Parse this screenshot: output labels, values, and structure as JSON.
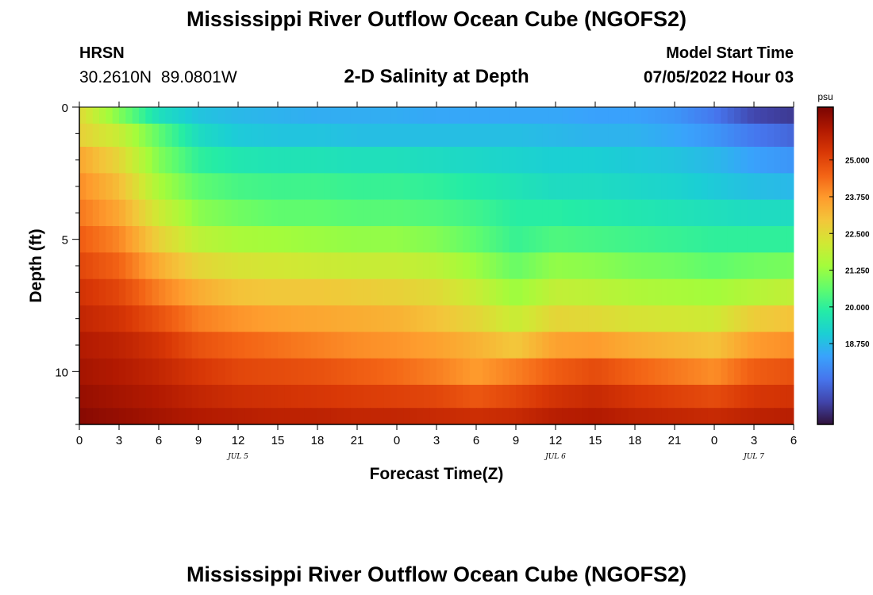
{
  "header": {
    "title": "Mississippi River Outflow Ocean Cube (NGOFS2)",
    "station": "HRSN",
    "coords": "30.2610N  89.0801W",
    "subtitle": "2-D Salinity at Depth",
    "model_label": "Model Start Time",
    "model_time": "07/05/2022 Hour 03"
  },
  "footer": {
    "title": "Mississippi River Outflow Ocean Cube (NGOFS2)"
  },
  "chart_data": {
    "type": "heatmap",
    "title": "2-D Salinity at Depth",
    "xlabel": "Forecast Time(Z)",
    "ylabel": "Depth (ft)",
    "x_ticks": [
      "0",
      "3",
      "6",
      "9",
      "12",
      "15",
      "18",
      "21",
      "0",
      "3",
      "6",
      "9",
      "12",
      "15",
      "18",
      "21",
      "0",
      "3",
      "6"
    ],
    "x_dates": [
      {
        "label": "JUL 5",
        "hour": 12
      },
      {
        "label": "JUL 6",
        "hour": 36
      },
      {
        "label": "JUL 7",
        "hour": 51
      }
    ],
    "xlim": [
      0,
      54
    ],
    "y_ticks": [
      0,
      5,
      10
    ],
    "ylim": [
      0,
      12
    ],
    "layer_depths": [
      0.25,
      1.0,
      2.0,
      3.0,
      4.0,
      5.0,
      6.0,
      7.0,
      8.0,
      9.0,
      10.0,
      11.0,
      11.75
    ],
    "hours": [
      0,
      3,
      6,
      9,
      12,
      15,
      18,
      21,
      24,
      27,
      30,
      33,
      36,
      39,
      42,
      45,
      48,
      51,
      54
    ],
    "salinity": [
      [
        22.5,
        21.0,
        19.5,
        18.9,
        18.7,
        18.6,
        18.5,
        18.5,
        18.5,
        18.4,
        18.4,
        18.4,
        18.4,
        18.3,
        18.3,
        18.1,
        17.6,
        16.8,
        16.6
      ],
      [
        22.7,
        22.0,
        20.6,
        19.4,
        19.0,
        18.9,
        18.9,
        18.8,
        18.8,
        18.8,
        18.8,
        18.8,
        18.7,
        18.6,
        18.6,
        18.4,
        18.1,
        17.6,
        17.3
      ],
      [
        23.5,
        22.6,
        21.0,
        20.0,
        19.7,
        19.6,
        19.6,
        19.5,
        19.5,
        19.4,
        19.3,
        19.2,
        19.1,
        19.1,
        19.0,
        18.9,
        18.7,
        18.3,
        18.1
      ],
      [
        23.9,
        23.1,
        21.5,
        20.6,
        20.3,
        20.2,
        20.2,
        20.1,
        20.1,
        20.0,
        19.8,
        19.6,
        19.4,
        19.4,
        19.3,
        19.2,
        19.0,
        18.8,
        18.7
      ],
      [
        24.2,
        23.5,
        22.1,
        21.1,
        20.8,
        20.6,
        20.6,
        20.5,
        20.5,
        20.4,
        20.2,
        19.9,
        19.9,
        19.8,
        19.7,
        19.6,
        19.5,
        19.4,
        19.4
      ],
      [
        24.6,
        24.0,
        22.7,
        21.8,
        21.5,
        21.4,
        21.3,
        21.2,
        21.2,
        21.0,
        20.6,
        20.1,
        20.4,
        20.3,
        20.2,
        20.1,
        20.0,
        20.0,
        20.0
      ],
      [
        25.0,
        24.5,
        23.4,
        22.6,
        22.3,
        22.2,
        22.1,
        22.0,
        22.0,
        21.8,
        21.3,
        20.7,
        21.2,
        21.1,
        20.9,
        20.8,
        20.6,
        20.8,
        20.9
      ],
      [
        25.4,
        25.0,
        24.1,
        23.4,
        23.0,
        22.9,
        22.9,
        22.8,
        22.7,
        22.5,
        22.0,
        21.3,
        21.9,
        21.8,
        21.6,
        21.5,
        21.4,
        21.7,
        21.9
      ],
      [
        25.7,
        25.4,
        24.8,
        24.1,
        23.8,
        23.6,
        23.5,
        23.4,
        23.3,
        23.0,
        22.6,
        22.0,
        22.6,
        22.5,
        22.3,
        22.2,
        22.1,
        22.8,
        23.0
      ],
      [
        26.0,
        25.8,
        25.4,
        24.8,
        24.5,
        24.3,
        24.1,
        23.9,
        23.8,
        23.6,
        23.3,
        22.9,
        23.6,
        23.7,
        23.4,
        23.2,
        23.0,
        23.7,
        23.9
      ],
      [
        26.2,
        26.0,
        25.7,
        25.3,
        25.0,
        24.9,
        24.8,
        24.6,
        24.4,
        24.1,
        23.7,
        24.1,
        24.6,
        24.9,
        24.5,
        24.2,
        23.9,
        24.6,
        24.8
      ],
      [
        26.4,
        26.2,
        26.0,
        25.7,
        25.5,
        25.4,
        25.3,
        25.2,
        25.1,
        25.0,
        24.7,
        25.0,
        25.4,
        25.6,
        25.3,
        25.1,
        24.9,
        25.3,
        25.4
      ],
      [
        26.6,
        26.4,
        26.2,
        26.0,
        25.9,
        25.8,
        25.8,
        25.7,
        25.7,
        25.6,
        25.5,
        25.6,
        25.9,
        26.0,
        25.8,
        25.7,
        25.6,
        25.8,
        25.9
      ]
    ],
    "colorbar": {
      "unit": "psu",
      "min": 16.0,
      "max": 26.8,
      "tick_values": [
        25.0,
        23.75,
        22.5,
        21.25,
        20.0,
        18.75
      ],
      "tick_labels": [
        "25.000",
        "23.750",
        "22.500",
        "21.250",
        "20.000",
        "18.750"
      ],
      "colors": [
        "#30123b",
        "#4145ab",
        "#4675ed",
        "#39a2fc",
        "#1bcfd4",
        "#24eca6",
        "#61fc6c",
        "#a4fc3b",
        "#d1e834",
        "#f3c63a",
        "#fe9b2d",
        "#f36315",
        "#d93806",
        "#b11901",
        "#7a0402"
      ]
    }
  }
}
